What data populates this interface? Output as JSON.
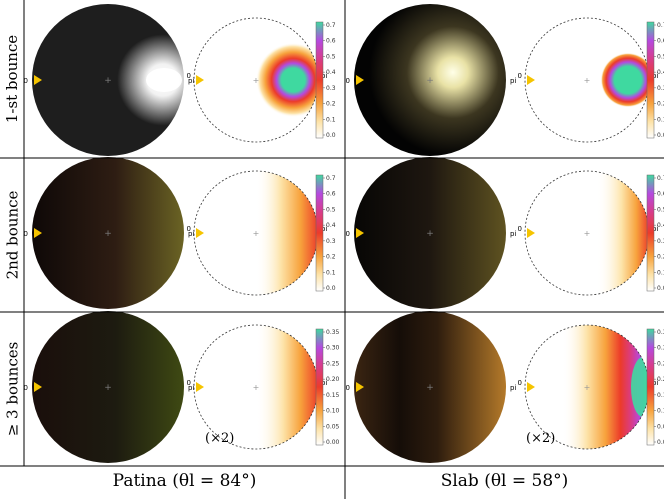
{
  "rows": [
    {
      "label": "1-st bounce",
      "scale_note": ""
    },
    {
      "label": "2nd bounce",
      "scale_note": ""
    },
    {
      "label": "≥ 3 bounces",
      "scale_note": "(×2)"
    }
  ],
  "columns": [
    {
      "label": "Patina (θl = 84°)"
    },
    {
      "label": "Slab (θl = 58°)"
    }
  ],
  "polar_axis": {
    "left_label": "0",
    "right_label": "pi",
    "center_mark": "+"
  },
  "colorbar_ticks": {
    "rows_1_2": [
      "0.0",
      "0.1",
      "0.2",
      "0.3",
      "0.4",
      "0.5",
      "0.6",
      "0.7"
    ],
    "row_3": [
      "0.00",
      "0.05",
      "0.10",
      "0.15",
      "0.20",
      "0.25",
      "0.30",
      "0.35"
    ]
  },
  "colors": {
    "light_marker": "#f5c400",
    "colormap": [
      "#ffffff",
      "#fde3a8",
      "#f7a23c",
      "#ec3b2a",
      "#d83c8a",
      "#b44ae0",
      "#3fd9a0"
    ]
  }
}
